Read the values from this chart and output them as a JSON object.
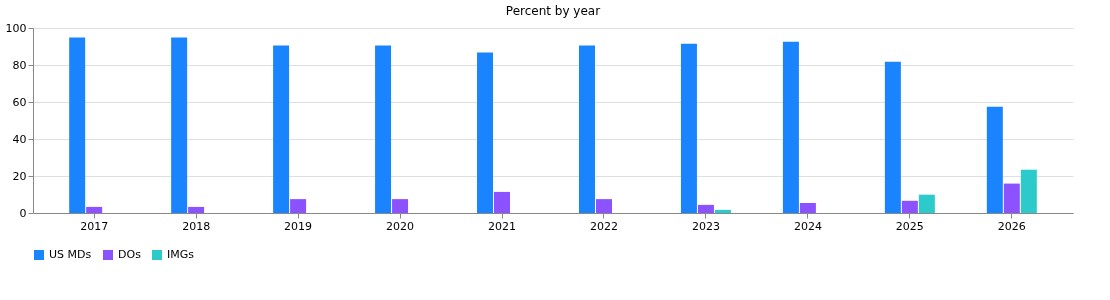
{
  "chart_data": {
    "type": "bar",
    "title": "Percent by year",
    "categories": [
      "2017",
      "2018",
      "2019",
      "2020",
      "2021",
      "2022",
      "2023",
      "2024",
      "2025",
      "2026"
    ],
    "series": [
      {
        "name": "US MDs",
        "color": "#1a84ff",
        "values": [
          94.8,
          94.8,
          90.5,
          90.5,
          86.7,
          90.5,
          91.5,
          92.6,
          81.8,
          57.4
        ]
      },
      {
        "name": "DOs",
        "color": "#8c52ff",
        "values": [
          3.3,
          3.3,
          7.5,
          7.5,
          11.4,
          7.5,
          4.4,
          5.4,
          6.6,
          15.9
        ]
      },
      {
        "name": "IMGs",
        "color": "#2ccaca",
        "values": [
          null,
          null,
          null,
          null,
          null,
          null,
          1.7,
          null,
          9.9,
          23.4
        ]
      }
    ],
    "ylim": [
      0,
      100
    ],
    "yticks": [
      0,
      20,
      40,
      60,
      80,
      100
    ],
    "grid": "y",
    "legend": "bottom"
  }
}
